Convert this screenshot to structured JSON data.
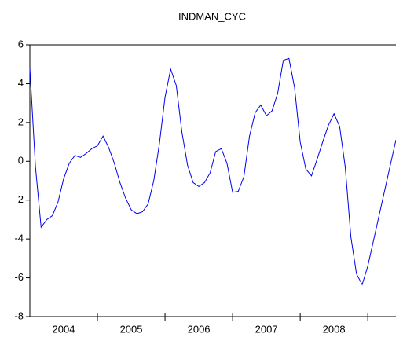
{
  "chart_data": {
    "type": "line",
    "title": "INDMAN_CYC",
    "categories": [
      null,
      null,
      null,
      null,
      null,
      null,
      "2004",
      null,
      null,
      null,
      null,
      null,
      null,
      null,
      null,
      null,
      null,
      null,
      "2005",
      null,
      null,
      null,
      null,
      null,
      null,
      null,
      null,
      null,
      null,
      null,
      "2006",
      null,
      null,
      null,
      null,
      null,
      null,
      null,
      null,
      null,
      null,
      null,
      "2007",
      null,
      null,
      null,
      null,
      null,
      null,
      null,
      null,
      null,
      null,
      null,
      "2008",
      null,
      null,
      null,
      null,
      null,
      null,
      null,
      null,
      null,
      null,
      null
    ],
    "series": [
      {
        "name": "INDMAN_CYC",
        "color": "#0000ee",
        "values": [
          4.8,
          -0.3,
          -3.4,
          -3.0,
          -2.8,
          -2.1,
          -0.9,
          -0.1,
          0.3,
          0.2,
          0.4,
          0.65,
          0.8,
          1.3,
          0.7,
          -0.1,
          -1.1,
          -1.9,
          -2.5,
          -2.7,
          -2.6,
          -2.2,
          -1.0,
          0.9,
          3.3,
          4.75,
          3.9,
          1.5,
          -0.2,
          -1.1,
          -1.3,
          -1.1,
          -0.6,
          0.5,
          0.65,
          -0.1,
          -1.6,
          -1.55,
          -0.8,
          1.3,
          2.5,
          2.9,
          2.35,
          2.6,
          3.5,
          5.2,
          5.3,
          3.8,
          1.0,
          -0.4,
          -0.75,
          0.1,
          1.0,
          1.85,
          2.45,
          1.8,
          -0.3,
          -3.9,
          -5.8,
          -6.35,
          -5.4,
          -4.1,
          -2.8,
          -1.5,
          -0.2,
          1.1
        ]
      }
    ],
    "ylim": [
      -8,
      6
    ],
    "yticks": [
      -8,
      -6,
      -4,
      -2,
      0,
      2,
      4,
      6
    ],
    "grid": false
  }
}
